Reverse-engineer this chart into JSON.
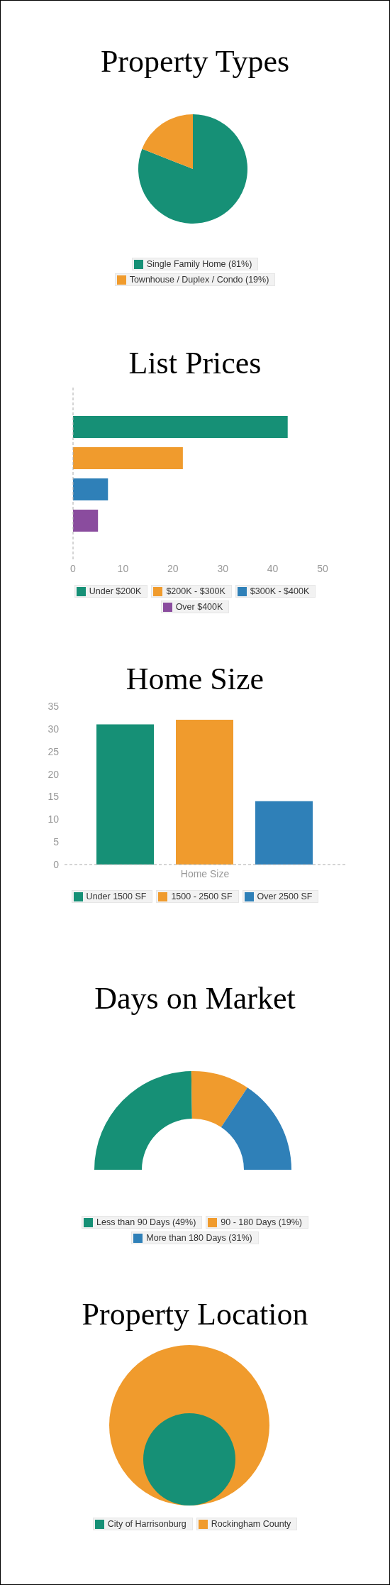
{
  "chart_data": [
    {
      "type": "pie",
      "title": "Property Types",
      "categories": [
        "Single Family Home (81%)",
        "Townhouse / Duplex / Condo (19%)"
      ],
      "values": [
        81,
        19
      ],
      "colors": [
        "#169076",
        "#f09b2d"
      ],
      "legend": "bottom"
    },
    {
      "type": "bar",
      "title": "List Prices",
      "orientation": "horizontal",
      "categories": [
        null
      ],
      "series": [
        {
          "name": "Under $200K",
          "color": "#169076",
          "values": [
            43
          ]
        },
        {
          "name": "$200K - $300K",
          "color": "#f09b2d",
          "values": [
            22
          ]
        },
        {
          "name": "$300K - $400K",
          "color": "#2f80b8",
          "values": [
            7
          ]
        },
        {
          "name": "Over $400K",
          "color": "#8a4c9e",
          "values": [
            5
          ]
        }
      ],
      "xlim": [
        0,
        50
      ],
      "xticks": [
        0,
        10,
        20,
        30,
        40,
        50
      ],
      "legend": "bottom"
    },
    {
      "type": "bar",
      "title": "Home Size",
      "categories": [
        "Home Size"
      ],
      "series": [
        {
          "name": "Under 1500 SF",
          "color": "#169076",
          "values": [
            31
          ]
        },
        {
          "name": "1500 - 2500 SF",
          "color": "#f09b2d",
          "values": [
            32
          ]
        },
        {
          "name": "Over 2500 SF",
          "color": "#2f80b8",
          "values": [
            14
          ]
        }
      ],
      "ylim": [
        0,
        35
      ],
      "yticks": [
        0,
        5,
        10,
        15,
        20,
        25,
        30,
        35
      ],
      "legend": "bottom"
    },
    {
      "type": "donut",
      "title": "Days on Market",
      "categories": [
        "Less than 90 Days (49%)",
        "90 - 180 Days (19%)",
        "More than 180 Days (31%)"
      ],
      "values": [
        49,
        19,
        31
      ],
      "colors": [
        "#169076",
        "#f09b2d",
        "#2f80b8"
      ],
      "legend": "bottom"
    },
    {
      "type": "other",
      "title": "Property Location",
      "categories": [
        "City of Harrisonburg",
        "Rockingham County"
      ],
      "colors": [
        "#169076",
        "#f09b2d"
      ]
    }
  ]
}
